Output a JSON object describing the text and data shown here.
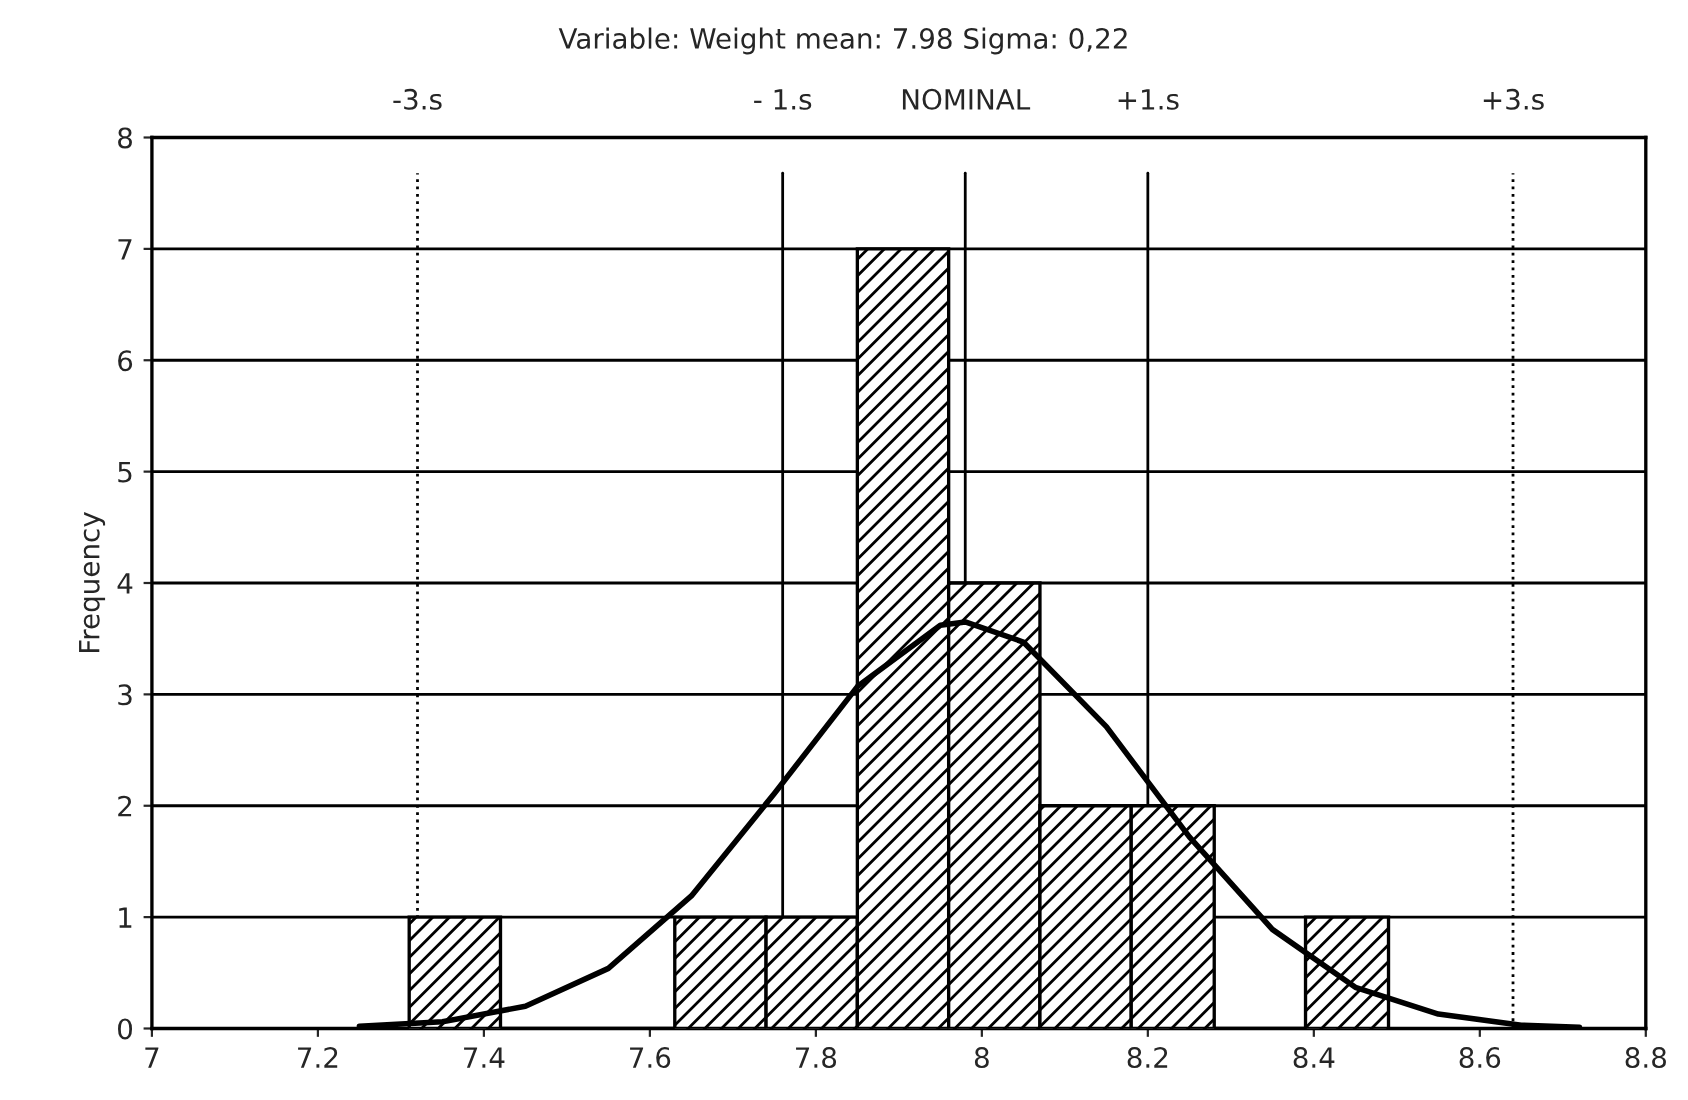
{
  "chart_data": {
    "type": "histogram",
    "title": "Variable: Weight mean: 7.98 Sigma: 0,22",
    "ylabel": "Frequency",
    "bins": [
      7.31,
      7.42,
      7.63,
      7.74,
      7.85,
      7.96,
      8.07,
      8.18,
      8.28,
      8.39,
      8.49
    ],
    "values": [
      1,
      0,
      1,
      1,
      7,
      4,
      2,
      2,
      0,
      1
    ],
    "color": "#000000",
    "series": [
      {
        "type": "line",
        "color": "#000000",
        "x": [
          7.25,
          7.35,
          7.45,
          7.55,
          7.65,
          7.75,
          7.85,
          7.95,
          7.98,
          8.05,
          8.15,
          8.25,
          8.35,
          8.45,
          8.55,
          8.65,
          8.72
        ],
        "values": [
          0.02,
          0.06,
          0.2,
          0.54,
          1.19,
          2.11,
          3.07,
          3.62,
          3.65,
          3.47,
          2.71,
          1.72,
          0.89,
          0.37,
          0.13,
          0.03,
          0.01
        ]
      }
    ],
    "ref_lines": [
      {
        "axis": "x",
        "value": 7.32,
        "label": "-3.s",
        "line_style": "dotted"
      },
      {
        "axis": "x",
        "value": 7.76,
        "label": "- 1.s",
        "line_style": "solid"
      },
      {
        "axis": "x",
        "value": 7.98,
        "label": "NOMINAL",
        "line_style": "solid"
      },
      {
        "axis": "x",
        "value": 8.2,
        "label": "+1.s",
        "line_style": "solid"
      },
      {
        "axis": "x",
        "value": 8.64,
        "label": "+3.s",
        "line_style": "dotted"
      }
    ],
    "xlim": [
      7,
      8.8
    ],
    "xticks": [
      7,
      7.2,
      7.4,
      7.6,
      7.8,
      8,
      8.2,
      8.4,
      8.6,
      8.8
    ],
    "ylim": [
      0,
      8
    ],
    "yticks": [
      0,
      1,
      2,
      3,
      4,
      5,
      6,
      7,
      8
    ],
    "grid": "y",
    "legend": false
  }
}
